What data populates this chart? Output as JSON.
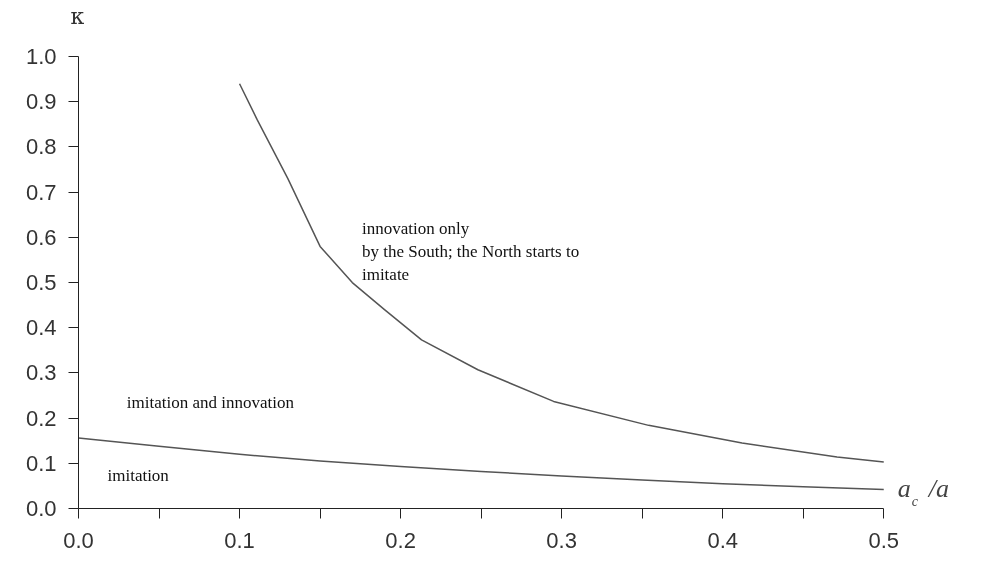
{
  "chart_data": {
    "type": "line",
    "xlabel": "a$_{c}$ /a",
    "ylabel": "κ",
    "series": [
      {
        "color": "#555555",
        "x": [
          0.1,
          0.111,
          0.13,
          0.15,
          0.17,
          0.19,
          0.213,
          0.248,
          0.295,
          0.354,
          0.412,
          0.471,
          0.5
        ],
        "values": [
          0.94,
          0.86,
          0.73,
          0.58,
          0.5,
          0.44,
          0.373,
          0.307,
          0.237,
          0.184,
          0.145,
          0.114,
          0.103
        ]
      },
      {
        "color": "#555555",
        "x": [
          0,
          0.05,
          0.1,
          0.15,
          0.2,
          0.25,
          0.3,
          0.35,
          0.4,
          0.45,
          0.5
        ],
        "values": [
          0.156,
          0.138,
          0.12,
          0.105,
          0.093,
          0.082,
          0.072,
          0.063,
          0.055,
          0.048,
          0.042
        ]
      }
    ],
    "xlim": [
      0,
      0.5
    ],
    "ylim": [
      0,
      1.0
    ],
    "xticks": [
      {
        "value": 0,
        "label": "0.0"
      },
      {
        "value": 0.05,
        "label": null
      },
      {
        "value": 0.1,
        "label": "0.1"
      },
      {
        "value": 0.15,
        "label": null
      },
      {
        "value": 0.2,
        "label": "0.2"
      },
      {
        "value": 0.25,
        "label": null
      },
      {
        "value": 0.3,
        "label": "0.3"
      },
      {
        "value": 0.35,
        "label": null
      },
      {
        "value": 0.4,
        "label": "0.4"
      },
      {
        "value": 0.45,
        "label": null
      },
      {
        "value": 0.5,
        "label": "0.5"
      }
    ],
    "yticks": [
      {
        "value": 0,
        "label": "0.0"
      },
      0.1,
      0.2,
      0.3,
      0.4,
      0.5,
      0.6,
      0.7,
      0.8,
      0.9,
      {
        "value": 1.0,
        "label": "1.0"
      }
    ],
    "annotations": [
      "innovation only\nby the South; the North starts to\nimitate",
      "imitation and innovation",
      "imitation"
    ],
    "grid": false,
    "marker": "none",
    "line_style": "solid"
  }
}
